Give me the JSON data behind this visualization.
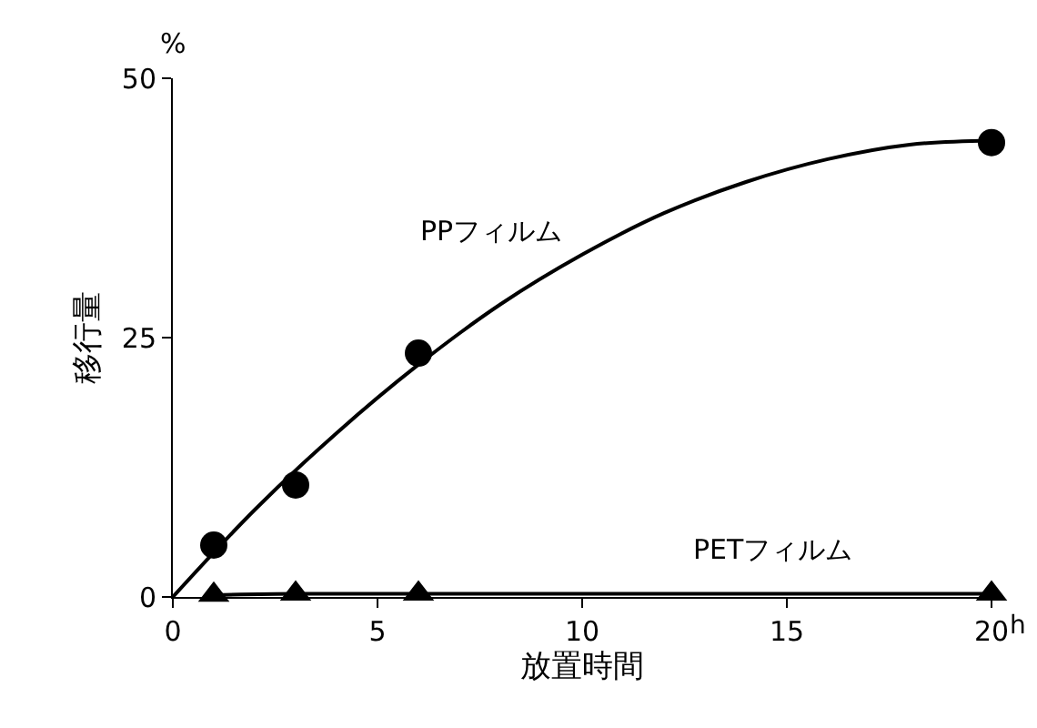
{
  "chart_data": {
    "type": "scatter",
    "xlabel": "放置時間",
    "ylabel": "移行量",
    "annotations": [
      "%",
      "h"
    ],
    "xlim": [
      0,
      20
    ],
    "xticks": [
      0,
      5,
      10,
      15,
      20
    ],
    "ylim": [
      0,
      50
    ],
    "yticks": [
      0,
      25,
      50
    ],
    "legend": false,
    "series": [
      {
        "name": "PPフィルム",
        "type": "line",
        "color": "#000000",
        "marker": "none",
        "x": [
          0,
          2,
          4,
          6,
          8,
          10,
          12,
          14,
          16,
          18,
          20
        ],
        "values": [
          0,
          8.4,
          15.8,
          22.4,
          28.2,
          33,
          37,
          40,
          42.2,
          43.6,
          44
        ]
      },
      {
        "color": "#000000",
        "marker": "circle",
        "x": [
          1,
          3,
          6,
          20
        ],
        "values": [
          5,
          10.8,
          23.5,
          43.8
        ]
      },
      {
        "name": "PETフィルム",
        "type": "line",
        "color": "#000000",
        "marker": "triangle",
        "x": [
          1,
          3,
          6,
          20
        ],
        "values": [
          0.2,
          0.3,
          0.3,
          0.3
        ]
      }
    ]
  }
}
